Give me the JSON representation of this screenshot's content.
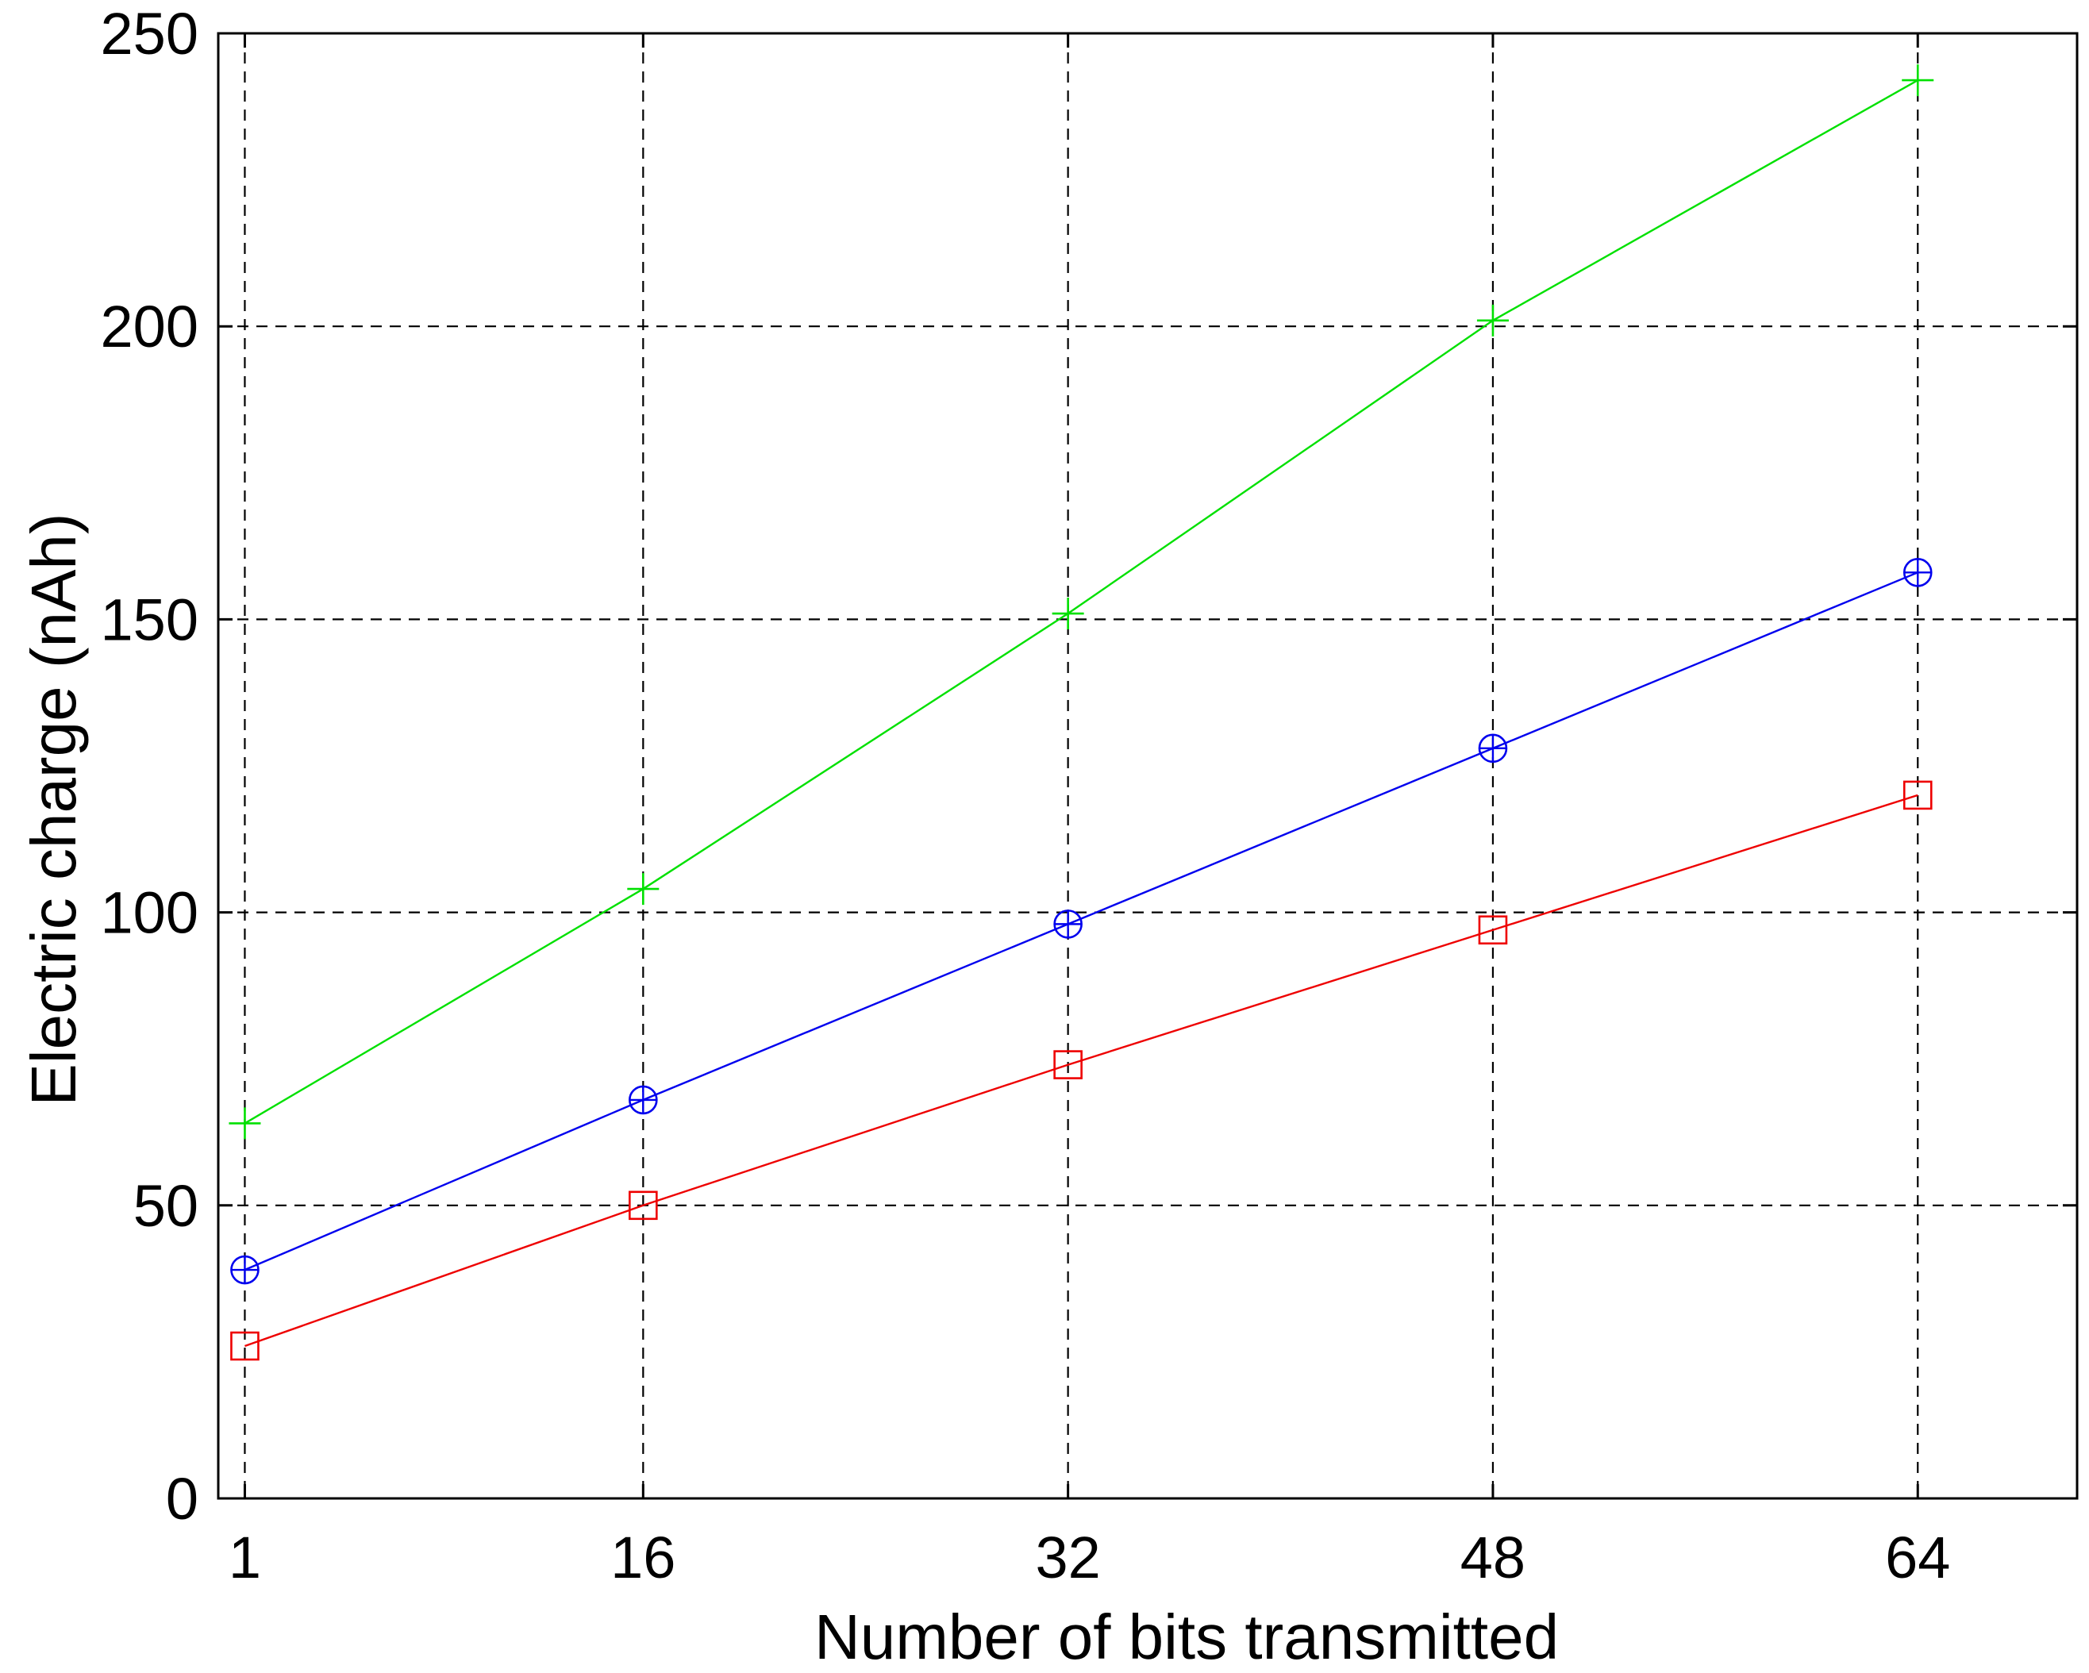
{
  "chart_data": {
    "type": "line",
    "title": "",
    "xlabel": "Number of bits transmitted",
    "ylabel": "Electric charge (nAh)",
    "x": [
      1,
      16,
      32,
      48,
      64
    ],
    "x_tick_labels": [
      "1",
      "16",
      "32",
      "48",
      "64"
    ],
    "y_tick_labels": [
      "0",
      "50",
      "100",
      "150",
      "200",
      "250"
    ],
    "y_ticks": [
      0,
      50,
      100,
      150,
      200,
      250
    ],
    "xlim": [
      0,
      70
    ],
    "ylim": [
      0,
      250
    ],
    "grid": true,
    "grid_style": "dashed",
    "legend": "none",
    "series": [
      {
        "values": [
          64,
          104,
          151,
          201,
          242
        ],
        "color": "#00e000",
        "marker": "plus"
      },
      {
        "values": [
          39,
          68,
          98,
          128,
          158
        ],
        "color": "#0000ee",
        "marker": "circle-plus"
      },
      {
        "values": [
          26,
          50,
          74,
          97,
          120
        ],
        "color": "#ee0000",
        "marker": "square"
      }
    ]
  }
}
